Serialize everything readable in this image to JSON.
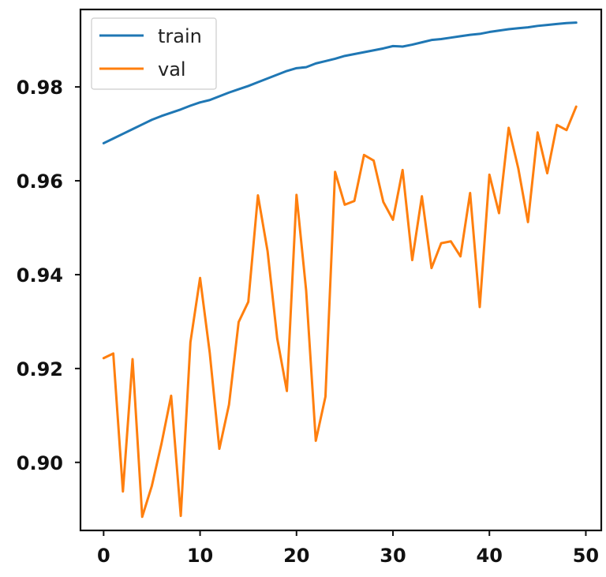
{
  "chart_data": {
    "type": "line",
    "title": "",
    "xlabel": "",
    "ylabel": "",
    "xlim": [
      -2.4,
      51.6
    ],
    "ylim": [
      0.8855,
      0.9965
    ],
    "xticks": [
      0,
      10,
      20,
      30,
      40,
      50
    ],
    "xtick_labels": [
      "0",
      "10",
      "20",
      "30",
      "40",
      "50"
    ],
    "yticks": [
      0.9,
      0.92,
      0.94,
      0.96,
      0.98
    ],
    "ytick_labels": [
      "0.90",
      "0.92",
      "0.94",
      "0.96",
      "0.98"
    ],
    "grid": false,
    "legend_position": "upper-left",
    "x": [
      0,
      1,
      2,
      3,
      4,
      5,
      6,
      7,
      8,
      9,
      10,
      11,
      12,
      13,
      14,
      15,
      16,
      17,
      18,
      19,
      20,
      21,
      22,
      23,
      24,
      25,
      26,
      27,
      28,
      29,
      30,
      31,
      32,
      33,
      34,
      35,
      36,
      37,
      38,
      39,
      40,
      41,
      42,
      43,
      44,
      45,
      46,
      47,
      48,
      49
    ],
    "series": [
      {
        "name": "train",
        "color": "#1f77b4",
        "values": [
          0.968,
          0.969,
          0.97,
          0.971,
          0.972,
          0.973,
          0.9738,
          0.9745,
          0.9752,
          0.976,
          0.9767,
          0.9772,
          0.978,
          0.9788,
          0.9795,
          0.9802,
          0.981,
          0.9818,
          0.9826,
          0.9834,
          0.984,
          0.9842,
          0.985,
          0.9855,
          0.986,
          0.9866,
          0.987,
          0.9874,
          0.9878,
          0.9882,
          0.9887,
          0.9886,
          0.989,
          0.9895,
          0.99,
          0.9902,
          0.9905,
          0.9908,
          0.9911,
          0.9913,
          0.9917,
          0.992,
          0.9923,
          0.9925,
          0.9927,
          0.993,
          0.9932,
          0.9934,
          0.9936,
          0.9937
        ]
      },
      {
        "name": "val",
        "color": "#ff7f0e",
        "values": [
          0.9222,
          0.9232,
          0.8938,
          0.922,
          0.8884,
          0.895,
          0.904,
          0.9142,
          0.8886,
          0.9256,
          0.9393,
          0.9234,
          0.9029,
          0.9123,
          0.9299,
          0.9342,
          0.9569,
          0.945,
          0.9264,
          0.9152,
          0.957,
          0.9366,
          0.9046,
          0.914,
          0.9619,
          0.9549,
          0.9557,
          0.9655,
          0.9643,
          0.9555,
          0.9517,
          0.9623,
          0.9431,
          0.9567,
          0.9414,
          0.9467,
          0.9471,
          0.9439,
          0.9574,
          0.9331,
          0.9613,
          0.9531,
          0.9713,
          0.9626,
          0.9512,
          0.9703,
          0.9616,
          0.9719,
          0.9708,
          0.9758
        ]
      }
    ]
  }
}
